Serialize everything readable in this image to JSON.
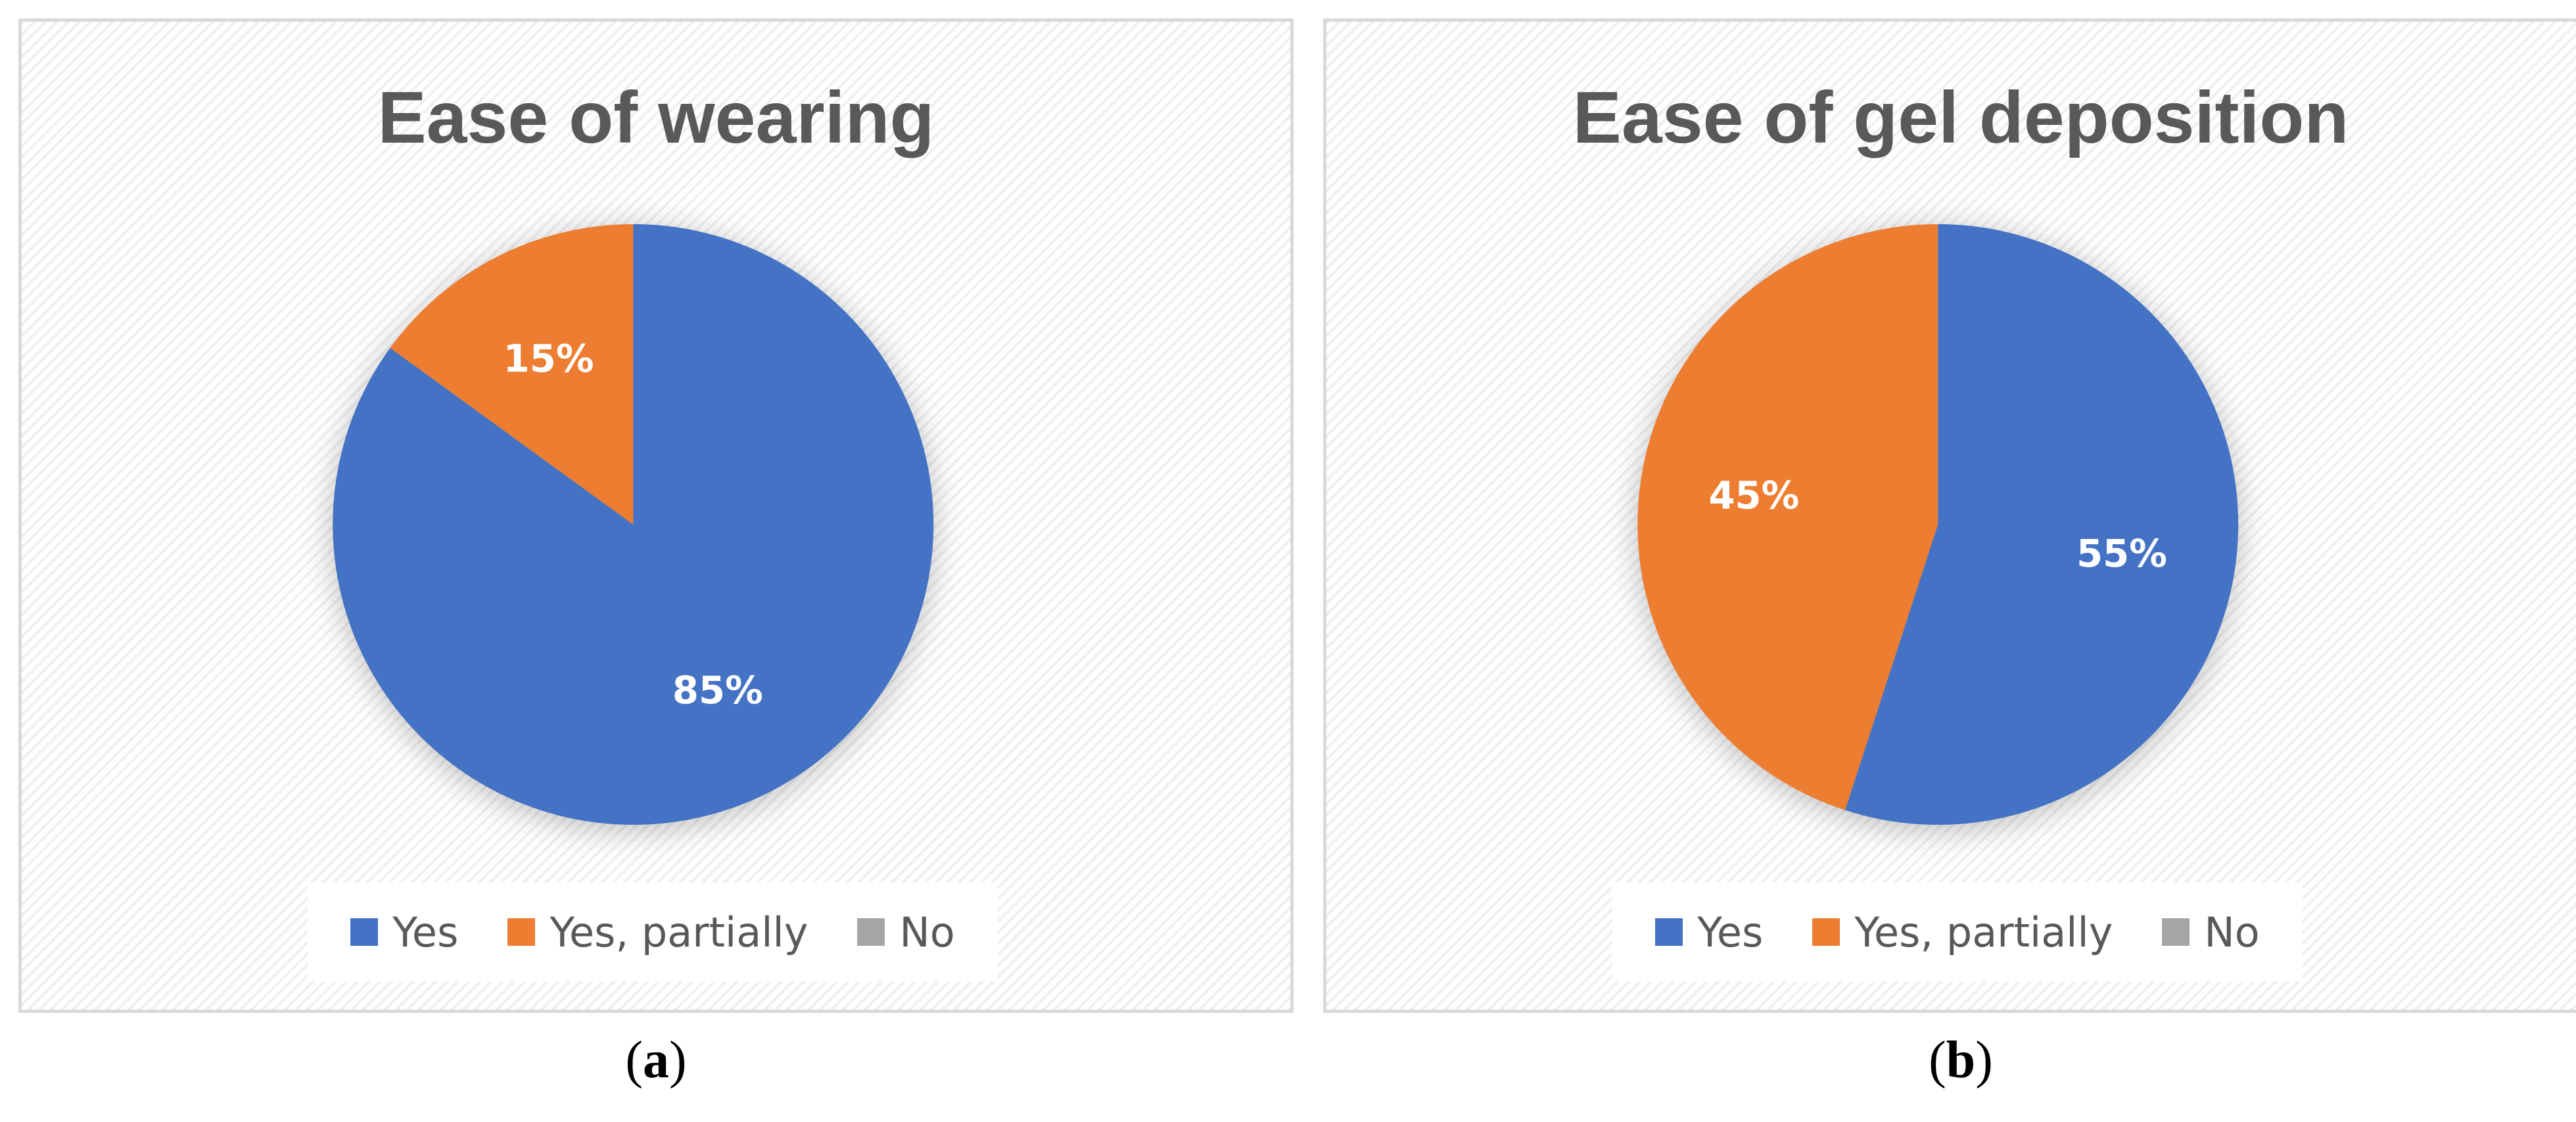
{
  "chart_data": [
    {
      "type": "pie",
      "title": "Ease of wearing",
      "categories": [
        "Yes",
        "Yes, partially",
        "No"
      ],
      "values": [
        85,
        15,
        0
      ],
      "labels": [
        "85%",
        "15%",
        ""
      ],
      "colors": [
        "#4472C4",
        "#ED7D31",
        "#A5A5A5"
      ],
      "legend": "bottom",
      "caption": "(a)",
      "caption_letter": "a"
    },
    {
      "type": "pie",
      "title": "Ease of gel deposition",
      "categories": [
        "Yes",
        "Yes, partially",
        "No"
      ],
      "values": [
        55,
        45,
        0
      ],
      "labels": [
        "55%",
        "45%",
        ""
      ],
      "colors": [
        "#4472C4",
        "#ED7D31",
        "#A5A5A5"
      ],
      "legend": "bottom",
      "caption": "(b)",
      "caption_letter": "b"
    }
  ]
}
